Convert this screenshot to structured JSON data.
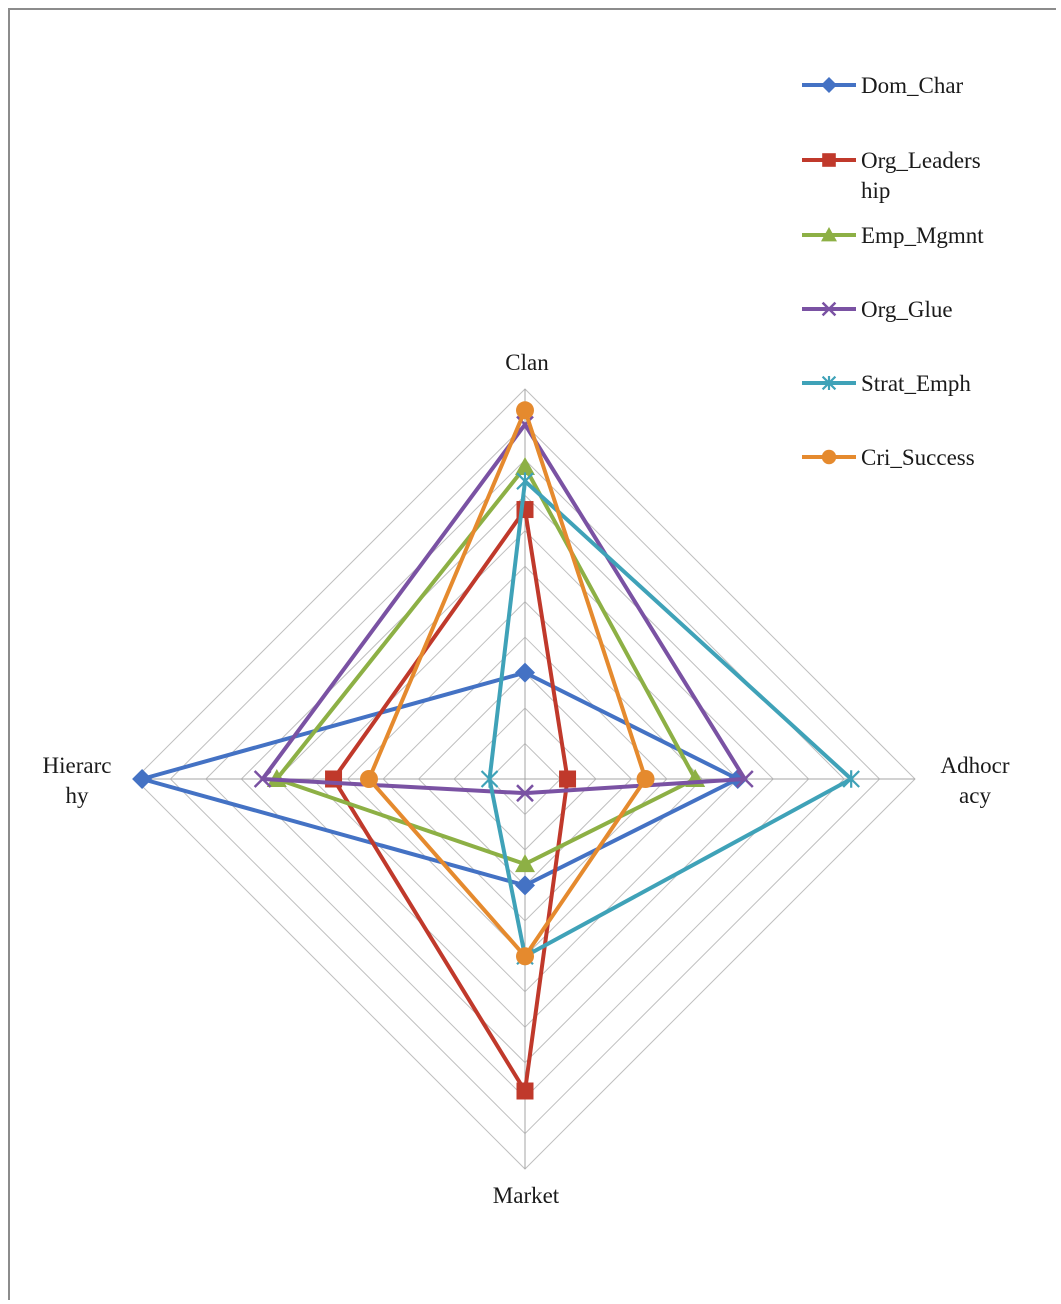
{
  "chart_data": {
    "type": "radar",
    "categories": [
      "Clan",
      "Adhocracy",
      "Market",
      "Hierarchy"
    ],
    "category_label_lines": [
      [
        "Clan"
      ],
      [
        "Adhocr",
        "acy"
      ],
      [
        "Market"
      ],
      [
        "Hierarc",
        "hy"
      ]
    ],
    "rmax": 55,
    "ring_step": 5,
    "grid": true,
    "legend_position": "top-right",
    "series": [
      {
        "name": "Dom_Char",
        "name_lines": [
          "Dom_Char"
        ],
        "color": "#4472C4",
        "marker": "diamond",
        "values": [
          15,
          30,
          15,
          54
        ]
      },
      {
        "name": "Org_Leadership",
        "name_lines": [
          "Org_Leaders",
          "hip"
        ],
        "color": "#C0392B",
        "marker": "square",
        "values": [
          38,
          6,
          44,
          27
        ]
      },
      {
        "name": "Emp_Mgmnt",
        "name_lines": [
          "Emp_Mgmnt"
        ],
        "color": "#8DB045",
        "marker": "triangle",
        "values": [
          44,
          24,
          12,
          35
        ]
      },
      {
        "name": "Org_Glue",
        "name_lines": [
          "Org_Glue"
        ],
        "color": "#7A52A3",
        "marker": "x",
        "values": [
          50,
          31,
          2,
          37
        ]
      },
      {
        "name": "Strat_Emph",
        "name_lines": [
          "Strat_Emph"
        ],
        "color": "#3FA2B8",
        "marker": "star",
        "values": [
          42,
          46,
          25,
          5
        ]
      },
      {
        "name": "Cri_Success",
        "name_lines": [
          "Cri_Success"
        ],
        "color": "#E58A2E",
        "marker": "circle",
        "values": [
          52,
          17,
          25,
          22
        ]
      }
    ]
  }
}
